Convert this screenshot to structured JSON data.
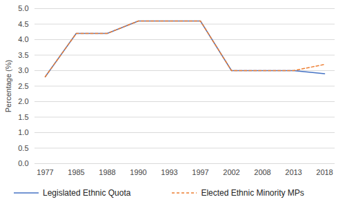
{
  "chart_data": {
    "type": "line",
    "y_label": "Percentage (%)",
    "categories": [
      "1977",
      "1985",
      "1988",
      "1990",
      "1993",
      "1997",
      "2002",
      "2008",
      "2013",
      "2018"
    ],
    "series": [
      {
        "name": "Legislated Ethnic Quota",
        "color": "#4472c4",
        "line_style": "solid",
        "values": [
          2.8,
          4.2,
          4.2,
          4.6,
          4.6,
          4.6,
          3.0,
          3.0,
          3.0,
          2.9
        ]
      },
      {
        "name": "Elected Ethnic Minority MPs",
        "color": "#ed7d31",
        "line_style": "dashed",
        "values": [
          2.8,
          4.2,
          4.2,
          4.6,
          4.6,
          4.6,
          3.0,
          3.0,
          3.0,
          3.2
        ]
      }
    ],
    "ylim": [
      0,
      5
    ],
    "yticks": [
      {
        "value": 0,
        "label": "0.0"
      },
      0.5,
      {
        "value": 1,
        "label": "1.0"
      },
      1.5,
      {
        "value": 2,
        "label": "2.0"
      },
      2.5,
      {
        "value": 3,
        "label": "3.0"
      },
      3.5,
      {
        "value": 4,
        "label": "4.0"
      },
      4.5,
      {
        "value": 5,
        "label": "5.0"
      }
    ],
    "grid": true,
    "legend": "bottom"
  }
}
